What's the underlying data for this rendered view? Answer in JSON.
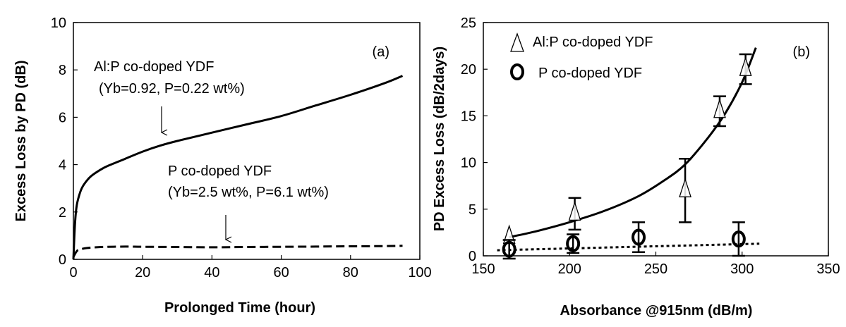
{
  "chart_data": [
    {
      "panel": "(a)",
      "type": "line",
      "xlabel": "Prolonged Time (hour)",
      "ylabel": "Excess Loss by PD (dB)",
      "xlim": [
        0,
        100
      ],
      "ylim": [
        0,
        10
      ],
      "xticks": [
        0,
        20,
        40,
        60,
        80,
        100
      ],
      "yticks": [
        0,
        2,
        4,
        6,
        8,
        10
      ],
      "grid": false,
      "series": [
        {
          "name": "Al:P co-doped YDF",
          "style": "solid",
          "x": [
            0,
            0.5,
            1,
            2,
            3,
            5,
            8,
            10,
            15,
            20,
            25,
            30,
            40,
            50,
            60,
            70,
            80,
            90,
            95
          ],
          "y": [
            0,
            1.6,
            2.3,
            2.85,
            3.15,
            3.5,
            3.8,
            3.95,
            4.25,
            4.55,
            4.8,
            5.0,
            5.35,
            5.7,
            6.05,
            6.5,
            6.95,
            7.45,
            7.75
          ]
        },
        {
          "name": "P co-doped YDF",
          "style": "dashed",
          "x": [
            0,
            1,
            2,
            4,
            8,
            15,
            20,
            30,
            40,
            50,
            60,
            70,
            80,
            90,
            95
          ],
          "y": [
            0.1,
            0.35,
            0.42,
            0.48,
            0.52,
            0.54,
            0.53,
            0.52,
            0.51,
            0.52,
            0.53,
            0.54,
            0.55,
            0.56,
            0.57
          ]
        }
      ],
      "annotations": [
        {
          "lines": [
            "Al:P co-doped YDF",
            "(Yb=0.92, P=0.22 wt%)"
          ],
          "arrow_to": [
            27,
            5.3
          ]
        },
        {
          "lines": [
            "P co-doped YDF",
            "(Yb=2.5 wt%, P=6.1 wt%)"
          ],
          "arrow_to": [
            47,
            0.7
          ]
        }
      ]
    },
    {
      "panel": "(b)",
      "type": "scatter",
      "xlabel": "Absorbance @915nm (dB/m)",
      "ylabel": "PD Excess Loss (dB/2days)",
      "xlim": [
        150,
        350
      ],
      "ylim": [
        0,
        25
      ],
      "xticks": [
        150,
        200,
        250,
        300,
        350
      ],
      "yticks": [
        0,
        5,
        10,
        15,
        20,
        25
      ],
      "grid": false,
      "legend": "top-left",
      "series": [
        {
          "name": "Al:P co-doped YDF",
          "marker": "triangle",
          "x": [
            165,
            203,
            267,
            287,
            302
          ],
          "y": [
            2.0,
            4.5,
            7.0,
            15.5,
            20.0
          ],
          "err": [
            0,
            1.7,
            3.4,
            1.6,
            1.6
          ],
          "fit": {
            "style": "solid",
            "x": [
              165,
              180,
              200,
              220,
              240,
              255,
              267,
              280,
              290,
              300,
              308
            ],
            "y": [
              2.0,
              2.6,
              3.6,
              4.8,
              6.4,
              8.1,
              9.8,
              12.6,
              15.2,
              18.6,
              22.3
            ]
          }
        },
        {
          "name": "P co-doped YDF",
          "marker": "circle",
          "x": [
            165,
            202,
            240,
            298
          ],
          "y": [
            0.7,
            1.3,
            2.0,
            1.8
          ],
          "err": [
            1.0,
            1.0,
            1.6,
            1.8
          ],
          "fit": {
            "style": "dotted",
            "x": [
              158,
              310
            ],
            "y": [
              0.6,
              1.3
            ]
          }
        }
      ]
    }
  ]
}
